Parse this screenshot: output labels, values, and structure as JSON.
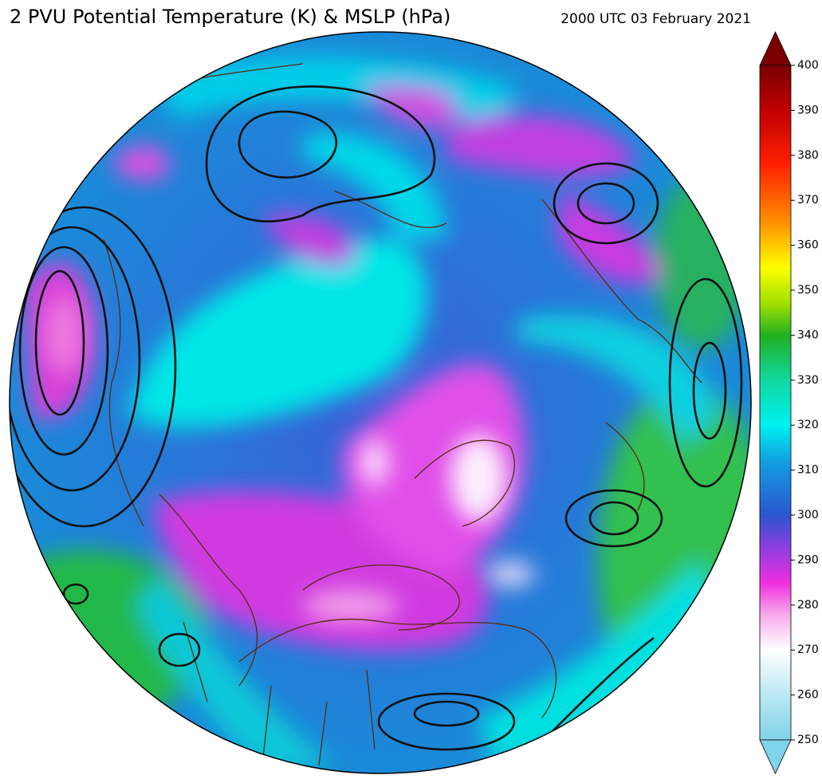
{
  "title": "2 PVU Potential Temperature (K) & MSLP (hPa)",
  "timestamp": "2000 UTC 03 February 2021",
  "colorbar": {
    "range": [
      250,
      400
    ],
    "ticks": [
      250,
      260,
      270,
      280,
      290,
      300,
      310,
      320,
      330,
      340,
      350,
      360,
      370,
      380,
      390,
      400
    ],
    "stops": [
      {
        "value": 250,
        "color": "#7fd3ea"
      },
      {
        "value": 262,
        "color": "#c8ecf5"
      },
      {
        "value": 270,
        "color": "#ffffff"
      },
      {
        "value": 278,
        "color": "#f7a8ec"
      },
      {
        "value": 285,
        "color": "#ee2ee0"
      },
      {
        "value": 293,
        "color": "#8a3fe0"
      },
      {
        "value": 300,
        "color": "#2a55d0"
      },
      {
        "value": 312,
        "color": "#11a0e0"
      },
      {
        "value": 320,
        "color": "#00f0f0"
      },
      {
        "value": 330,
        "color": "#10d8a0"
      },
      {
        "value": 340,
        "color": "#20b020"
      },
      {
        "value": 347,
        "color": "#a0e000"
      },
      {
        "value": 355,
        "color": "#ffff00"
      },
      {
        "value": 365,
        "color": "#ff9000"
      },
      {
        "value": 378,
        "color": "#ff2000"
      },
      {
        "value": 390,
        "color": "#c00000"
      },
      {
        "value": 400,
        "color": "#7a0000"
      }
    ]
  }
}
